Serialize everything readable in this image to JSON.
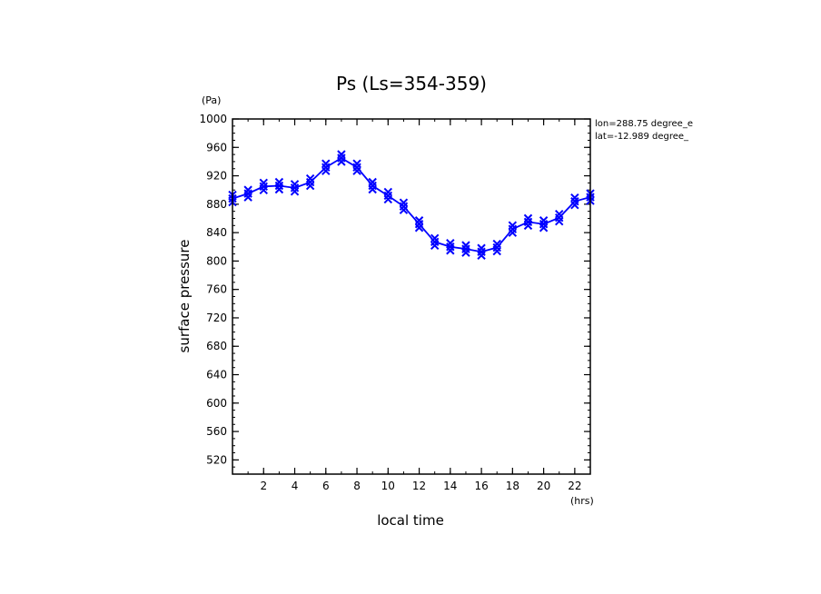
{
  "chart_data": {
    "type": "line",
    "title": "Ps (Ls=354-359)",
    "xlabel": "local time",
    "ylabel": "surface pressure",
    "xunit": "(hrs)",
    "yunit": "(Pa)",
    "xlim": [
      0,
      23
    ],
    "ylim": [
      500,
      1000
    ],
    "xticks": [
      2,
      4,
      6,
      8,
      10,
      12,
      14,
      16,
      18,
      20,
      22
    ],
    "yticks": [
      520,
      560,
      600,
      640,
      680,
      720,
      760,
      800,
      840,
      880,
      920,
      960,
      1000
    ],
    "grid": false,
    "annotations": [
      "lon=288.75 degree_e",
      "lat=-12.989 degree_"
    ],
    "series": [
      {
        "color": "#0000ff",
        "marker": "x",
        "x": [
          0,
          1,
          2,
          3,
          4,
          5,
          6,
          7,
          8,
          9,
          10,
          11,
          12,
          13,
          14,
          15,
          16,
          17,
          18,
          19,
          20,
          21,
          22,
          23
        ],
        "y": [
          888,
          895,
          905,
          906,
          903,
          911,
          932,
          945,
          932,
          906,
          892,
          877,
          852,
          827,
          820,
          817,
          813,
          819,
          845,
          855,
          852,
          861,
          884,
          890
        ]
      }
    ]
  }
}
